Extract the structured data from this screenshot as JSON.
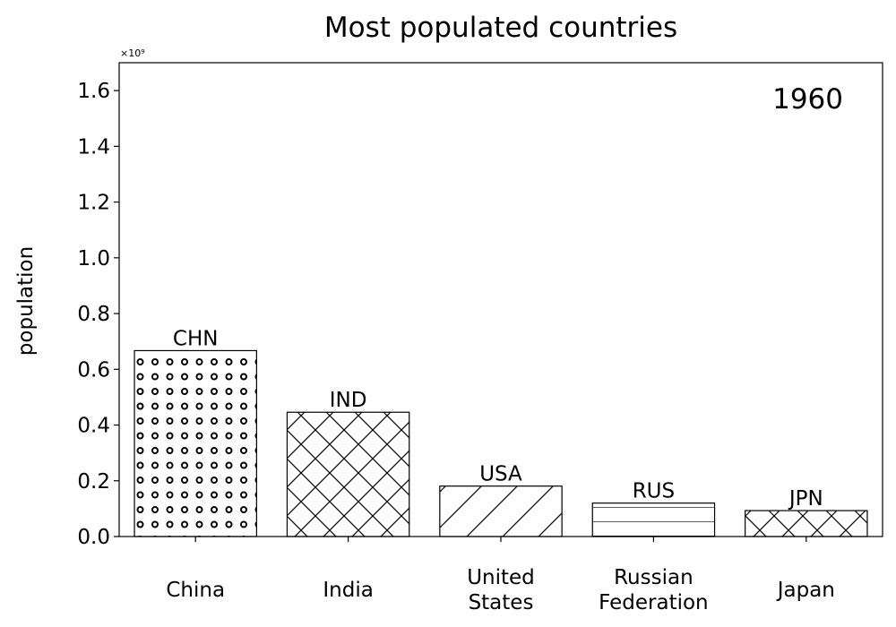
{
  "chart_data": {
    "type": "bar",
    "title": "Most populated countries",
    "ylabel": "population",
    "xlabel": "",
    "annotation": "1960",
    "y_multiplier_label": "×10⁹",
    "ylim": [
      0,
      1.7
    ],
    "y_unit_multiplier": 1000000000,
    "yticks": [
      0.0,
      0.2,
      0.4,
      0.6,
      0.8,
      1.0,
      1.2,
      1.4,
      1.6
    ],
    "ytick_labels": [
      "0.0",
      "0.2",
      "0.4",
      "0.6",
      "0.8",
      "1.0",
      "1.2",
      "1.4",
      "1.6"
    ],
    "categories": [
      [
        "China"
      ],
      [
        "India"
      ],
      [
        "United",
        "States"
      ],
      [
        "Russian",
        "Federation"
      ],
      [
        "Japan"
      ]
    ],
    "bar_labels": [
      "CHN",
      "IND",
      "USA",
      "RUS",
      "JPN"
    ],
    "values": [
      0.667,
      0.446,
      0.181,
      0.12,
      0.093
    ],
    "patterns": [
      "dots",
      "crosshatch",
      "diagonal",
      "horizontal",
      "crosshatch"
    ],
    "bar_color": "#ffffff",
    "edge_color": "#000000",
    "grid": false
  }
}
